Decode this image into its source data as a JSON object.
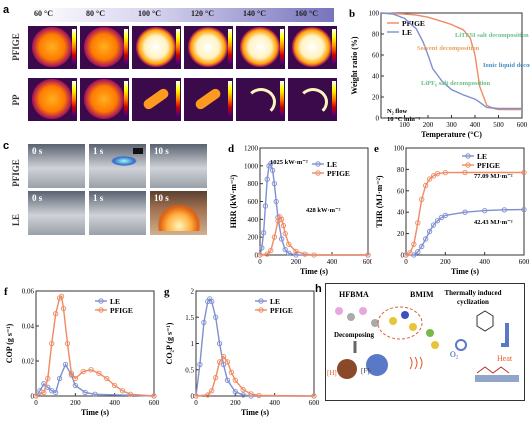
{
  "panels": {
    "a": "a",
    "b": "b",
    "c": "c",
    "d": "d",
    "e": "e",
    "f": "f",
    "g": "g",
    "h": "h"
  },
  "panel_a": {
    "temps": [
      "60 °C",
      "80 °C",
      "100 °C",
      "120 °C",
      "140 °C",
      "160 °C"
    ],
    "row1": "PFIGE",
    "row2": "PP"
  },
  "panel_c": {
    "row1": "PFIGE",
    "row2": "LE",
    "times": [
      "0 s",
      "1 s",
      "10 s"
    ]
  },
  "panel_h": {
    "hfbma": "HFBMA",
    "bmim": "BMIM",
    "decomposing": "Decomposing",
    "h_rad": "[H]·",
    "f_rad": "[F]·",
    "o2": "O₂",
    "cyclization": "Thermally induced cyclization",
    "heat": "Heat"
  },
  "colors": {
    "pfige": "#ef8a62",
    "le": "#7f8fd0"
  },
  "chart_data": [
    {
      "id": "b",
      "type": "line",
      "xlabel": "Temperature (°C)",
      "ylabel": "Weight ratio (%)",
      "xlim": [
        0,
        600
      ],
      "ylim": [
        0,
        100
      ],
      "xticks": [
        100,
        200,
        300,
        400,
        500,
        600
      ],
      "yticks": [
        0,
        20,
        40,
        60,
        80,
        100
      ],
      "series": [
        {
          "name": "PFIGE",
          "x": [
            0,
            100,
            150,
            200,
            260,
            300,
            320,
            350,
            380,
            400,
            420,
            450,
            480,
            500,
            600
          ],
          "y": [
            100,
            99,
            98,
            96,
            92,
            89,
            87,
            84,
            76,
            60,
            30,
            12,
            9,
            8,
            8
          ]
        },
        {
          "name": "LE",
          "x": [
            0,
            50,
            100,
            150,
            180,
            200,
            220,
            260,
            300,
            350,
            400,
            420,
            450,
            500,
            600
          ],
          "y": [
            100,
            99,
            95,
            85,
            72,
            60,
            47,
            35,
            27,
            22,
            18,
            15,
            10,
            9,
            9
          ]
        }
      ],
      "annotations": [
        "Solvent decomposition",
        "LiPF₆ salt decomposition",
        "LiTFSI salt decomposition",
        "Ionic liquid decomposition",
        "N₂ flow",
        "10 °C min⁻¹"
      ]
    },
    {
      "id": "d",
      "type": "line",
      "xlabel": "Time (s)",
      "ylabel": "HRR (kW·m⁻²)",
      "xlim": [
        0,
        600
      ],
      "ylim": [
        0,
        1200
      ],
      "xticks": [
        0,
        200,
        400,
        600
      ],
      "yticks": [
        0,
        200,
        400,
        600,
        800,
        1000,
        1200
      ],
      "series": [
        {
          "name": "LE",
          "x": [
            0,
            10,
            20,
            30,
            40,
            50,
            60,
            70,
            80,
            90,
            100,
            120,
            140,
            160,
            200,
            600
          ],
          "y": [
            0,
            80,
            250,
            550,
            850,
            1000,
            1025,
            950,
            800,
            600,
            420,
            180,
            60,
            20,
            0,
            0
          ]
        },
        {
          "name": "PFIGE",
          "x": [
            0,
            40,
            60,
            80,
            100,
            110,
            120,
            130,
            140,
            160,
            200,
            250,
            300,
            600
          ],
          "y": [
            0,
            10,
            50,
            200,
            380,
            428,
            400,
            330,
            240,
            120,
            40,
            10,
            0,
            0
          ]
        }
      ],
      "annotations": [
        "1025 kW·m⁻²",
        "428 kW·m⁻²"
      ]
    },
    {
      "id": "e",
      "type": "line",
      "xlabel": "Time (s)",
      "ylabel": "THR (MJ·m⁻²)",
      "xlim": [
        0,
        600
      ],
      "ylim": [
        0,
        100
      ],
      "xticks": [
        0,
        200,
        400,
        600
      ],
      "yticks": [
        0,
        20,
        40,
        60,
        80,
        100
      ],
      "series": [
        {
          "name": "LE",
          "x": [
            0,
            40,
            60,
            80,
            100,
            120,
            140,
            160,
            180,
            200,
            300,
            400,
            500,
            600
          ],
          "y": [
            0,
            0,
            3,
            8,
            15,
            22,
            28,
            32,
            35,
            37,
            40,
            41.5,
            42.2,
            42.43
          ]
        },
        {
          "name": "PFIGE",
          "x": [
            0,
            20,
            40,
            60,
            80,
            100,
            120,
            140,
            160,
            200,
            300,
            600
          ],
          "y": [
            0,
            2,
            10,
            30,
            52,
            65,
            71,
            74,
            76,
            77,
            77.09,
            77.09
          ]
        }
      ],
      "annotations": [
        "77.09 MJ·m⁻²",
        "42.43 MJ·m⁻²"
      ]
    },
    {
      "id": "f",
      "type": "line",
      "xlabel": "Time (s)",
      "ylabel": "COP (g s⁻¹)",
      "xlim": [
        0,
        600
      ],
      "ylim": [
        0,
        0.06
      ],
      "xticks": [
        0,
        200,
        400,
        600
      ],
      "yticks": [
        0,
        0.02,
        0.04,
        0.06
      ],
      "series": [
        {
          "name": "LE",
          "x": [
            0,
            20,
            40,
            60,
            80,
            100,
            120,
            150,
            180,
            200,
            250,
            300,
            600
          ],
          "y": [
            0,
            0.003,
            0.007,
            0.005,
            0.003,
            0.002,
            0.01,
            0.018,
            0.012,
            0.006,
            0.002,
            0.001,
            0
          ]
        },
        {
          "name": "PFIGE",
          "x": [
            0,
            40,
            60,
            80,
            100,
            120,
            130,
            140,
            160,
            180,
            200,
            240,
            280,
            320,
            360,
            400,
            440,
            480,
            600
          ],
          "y": [
            0,
            0.002,
            0.01,
            0.03,
            0.047,
            0.056,
            0.057,
            0.05,
            0.03,
            0.013,
            0.01,
            0.014,
            0.015,
            0.013,
            0.01,
            0.006,
            0.003,
            0.001,
            0
          ]
        }
      ]
    },
    {
      "id": "g",
      "type": "line",
      "xlabel": "Time (s)",
      "ylabel": "CO₂P (g s⁻¹)",
      "xlim": [
        0,
        600
      ],
      "ylim": [
        0,
        2.0
      ],
      "xticks": [
        0,
        200,
        400,
        600
      ],
      "yticks": [
        0,
        0.5,
        1.0,
        1.5,
        2.0
      ],
      "series": [
        {
          "name": "LE",
          "x": [
            0,
            20,
            40,
            60,
            70,
            80,
            100,
            120,
            140,
            160,
            200,
            240,
            280,
            600
          ],
          "y": [
            0,
            0.6,
            1.4,
            1.8,
            1.85,
            1.8,
            1.5,
            1.0,
            0.6,
            0.3,
            0.08,
            0.02,
            0,
            0
          ]
        },
        {
          "name": "PFIGE",
          "x": [
            0,
            60,
            80,
            100,
            120,
            140,
            160,
            180,
            200,
            240,
            280,
            320,
            600
          ],
          "y": [
            0,
            0.02,
            0.1,
            0.35,
            0.65,
            0.75,
            0.65,
            0.45,
            0.3,
            0.12,
            0.04,
            0.01,
            0
          ]
        }
      ]
    }
  ]
}
